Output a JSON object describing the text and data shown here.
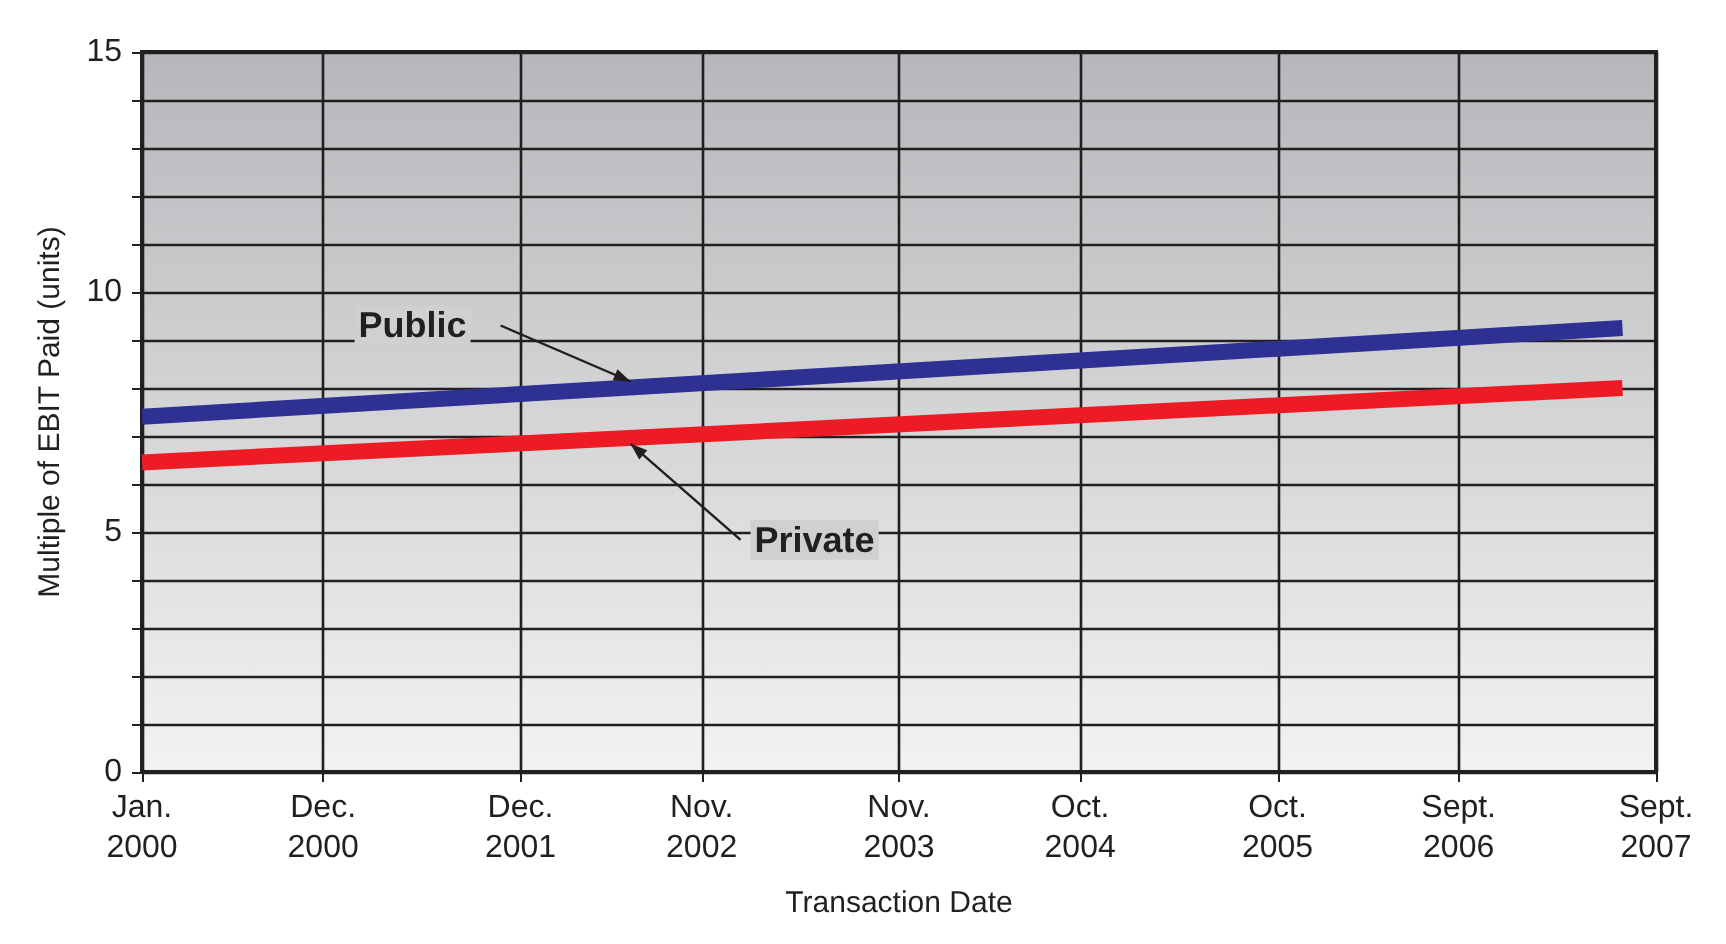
{
  "chart_data": {
    "type": "line",
    "xlabel": "Transaction Date",
    "ylabel": "Multiple of EBIT Paid (units)",
    "xlim": [
      "2000-01",
      "2007-09"
    ],
    "xticks": [
      {
        "value": "2000-01",
        "label": "Jan.\n2000"
      },
      {
        "value": "2000-12",
        "label": "Dec.\n2000"
      },
      {
        "value": "2001-12",
        "label": "Dec.\n2001"
      },
      {
        "value": "2002-11",
        "label": "Nov.\n2002"
      },
      {
        "value": "2003-11",
        "label": "Nov.\n2003"
      },
      {
        "value": "2004-10",
        "label": "Oct.\n2004"
      },
      {
        "value": "2005-10",
        "label": "Oct.\n2005"
      },
      {
        "value": "2006-09",
        "label": "Sept.\n2006"
      },
      {
        "value": "2007-09",
        "label": "Sept.\n2007"
      }
    ],
    "ylim": [
      0,
      15
    ],
    "yticks": [
      0,
      {
        "value": 1,
        "label": null
      },
      {
        "value": 2,
        "label": null
      },
      {
        "value": 3,
        "label": null
      },
      {
        "value": 4,
        "label": null
      },
      5,
      {
        "value": 6,
        "label": null
      },
      {
        "value": 7,
        "label": null
      },
      {
        "value": 8,
        "label": null
      },
      {
        "value": 9,
        "label": null
      },
      10,
      {
        "value": 11,
        "label": null
      },
      {
        "value": 12,
        "label": null
      },
      {
        "value": 13,
        "label": null
      },
      {
        "value": 14,
        "label": null
      },
      15
    ],
    "grid": true,
    "legend": false,
    "marker": "none",
    "line_style": "solid",
    "series": [
      {
        "name": "Public",
        "color": "#2e3192",
        "x": [
          "2000-01",
          "2007-07"
        ],
        "values": [
          7.4,
          9.25
        ]
      },
      {
        "name": "Private",
        "color": "#ed1c24",
        "x": [
          "2000-01",
          "2007-07"
        ],
        "values": [
          6.45,
          8.0
        ]
      }
    ]
  }
}
